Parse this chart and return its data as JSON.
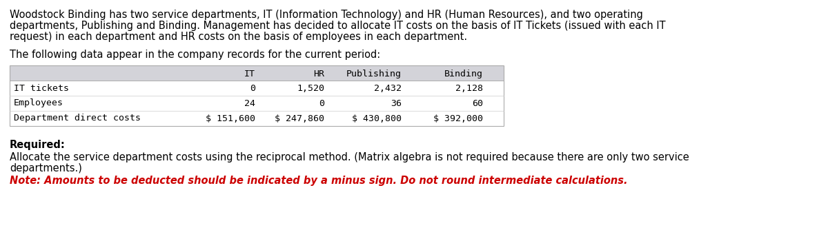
{
  "intro_text": "Woodstock Binding has two service departments, IT (Information Technology) and HR (Human Resources), and two operating\ndepartments, Publishing and Binding. Management has decided to allocate IT costs on the basis of IT Tickets (issued with each IT\nrequest) in each department and HR costs on the basis of employees in each department.",
  "following_text": "The following data appear in the company records for the current period:",
  "table_headers": [
    "",
    "IT",
    "HR",
    "Publishing",
    "Binding"
  ],
  "table_rows": [
    [
      "IT tickets",
      "0",
      "1,520",
      "2,432",
      "2,128"
    ],
    [
      "Employees",
      "24",
      "0",
      "36",
      "60"
    ],
    [
      "Department direct costs",
      "$ 151,600",
      "$ 247,860",
      "$ 430,800",
      "$ 392,000"
    ]
  ],
  "required_bold": "Required:",
  "required_text": "Allocate the service department costs using the reciprocal method. (Matrix algebra is not required because there are only two service\ndepartments.)",
  "note_text": "Note: Amounts to be deducted should be indicated by a minus sign. Do not round intermediate calculations.",
  "bg_color": "#ffffff",
  "table_header_bg": "#d3d3d9",
  "text_color": "#000000",
  "note_color": "#cc0000",
  "font_size_body": 10.5,
  "font_size_table": 9.5,
  "monospace_font": "DejaVu Sans Mono"
}
